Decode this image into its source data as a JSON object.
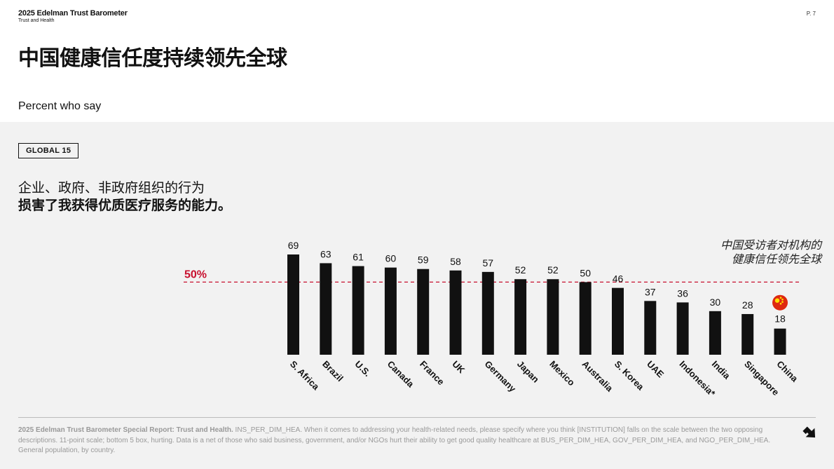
{
  "header": {
    "brand_title": "2025 Edelman Trust Barometer",
    "brand_sub": "Trust and Health",
    "page_number": "P. 7"
  },
  "title": "中国健康信任度持续领先全球",
  "subtitle": "Percent who say",
  "tag": "GLOBAL 15",
  "question": {
    "line1": "企业、政府、非政府组织的行为",
    "line2": "损害了我获得优质医疗服务的能力。"
  },
  "callout": {
    "line1": "中国受访者对机构的",
    "line2": "健康信任领先全球"
  },
  "footer": {
    "bold": "2025 Edelman Trust Barometer Special Report: Trust and Health.",
    "text": " INS_PER_DIM_HEA. When it comes to addressing your health-related needs, please specify where you think [INSTITUTION] falls on the scale between the two opposing descriptions. 11-point scale; bottom 5 box, hurting. Data is a net of those who said business, government, and/or NGOs hurt their ability to get good quality healthcare at BUS_PER_DIM_HEA, GOV_PER_DIM_HEA, and NGO_PER_DIM_HEA. General population, by country."
  },
  "colors": {
    "bar": "#111111",
    "reference": "#c8102e",
    "panel": "#f2f2f2"
  },
  "icons": {
    "china_flag": "china-flag-icon",
    "next": "next-arrow-icon"
  },
  "chart_data": {
    "type": "bar",
    "categories": [
      "S. Africa",
      "Brazil",
      "U.S.",
      "Canada",
      "France",
      "UK",
      "Germany",
      "Japan",
      "Mexico",
      "Australia",
      "S. Korea",
      "UAE",
      "Indonesia*",
      "India",
      "Singapore",
      "China"
    ],
    "values": [
      69,
      63,
      61,
      60,
      59,
      58,
      57,
      52,
      52,
      50,
      46,
      37,
      36,
      30,
      28,
      18
    ],
    "reference_line": {
      "value": 50,
      "label": "50%"
    },
    "ylim": [
      0,
      69
    ],
    "title": "",
    "xlabel": "",
    "ylabel": "",
    "grid": false,
    "legend": "none"
  }
}
